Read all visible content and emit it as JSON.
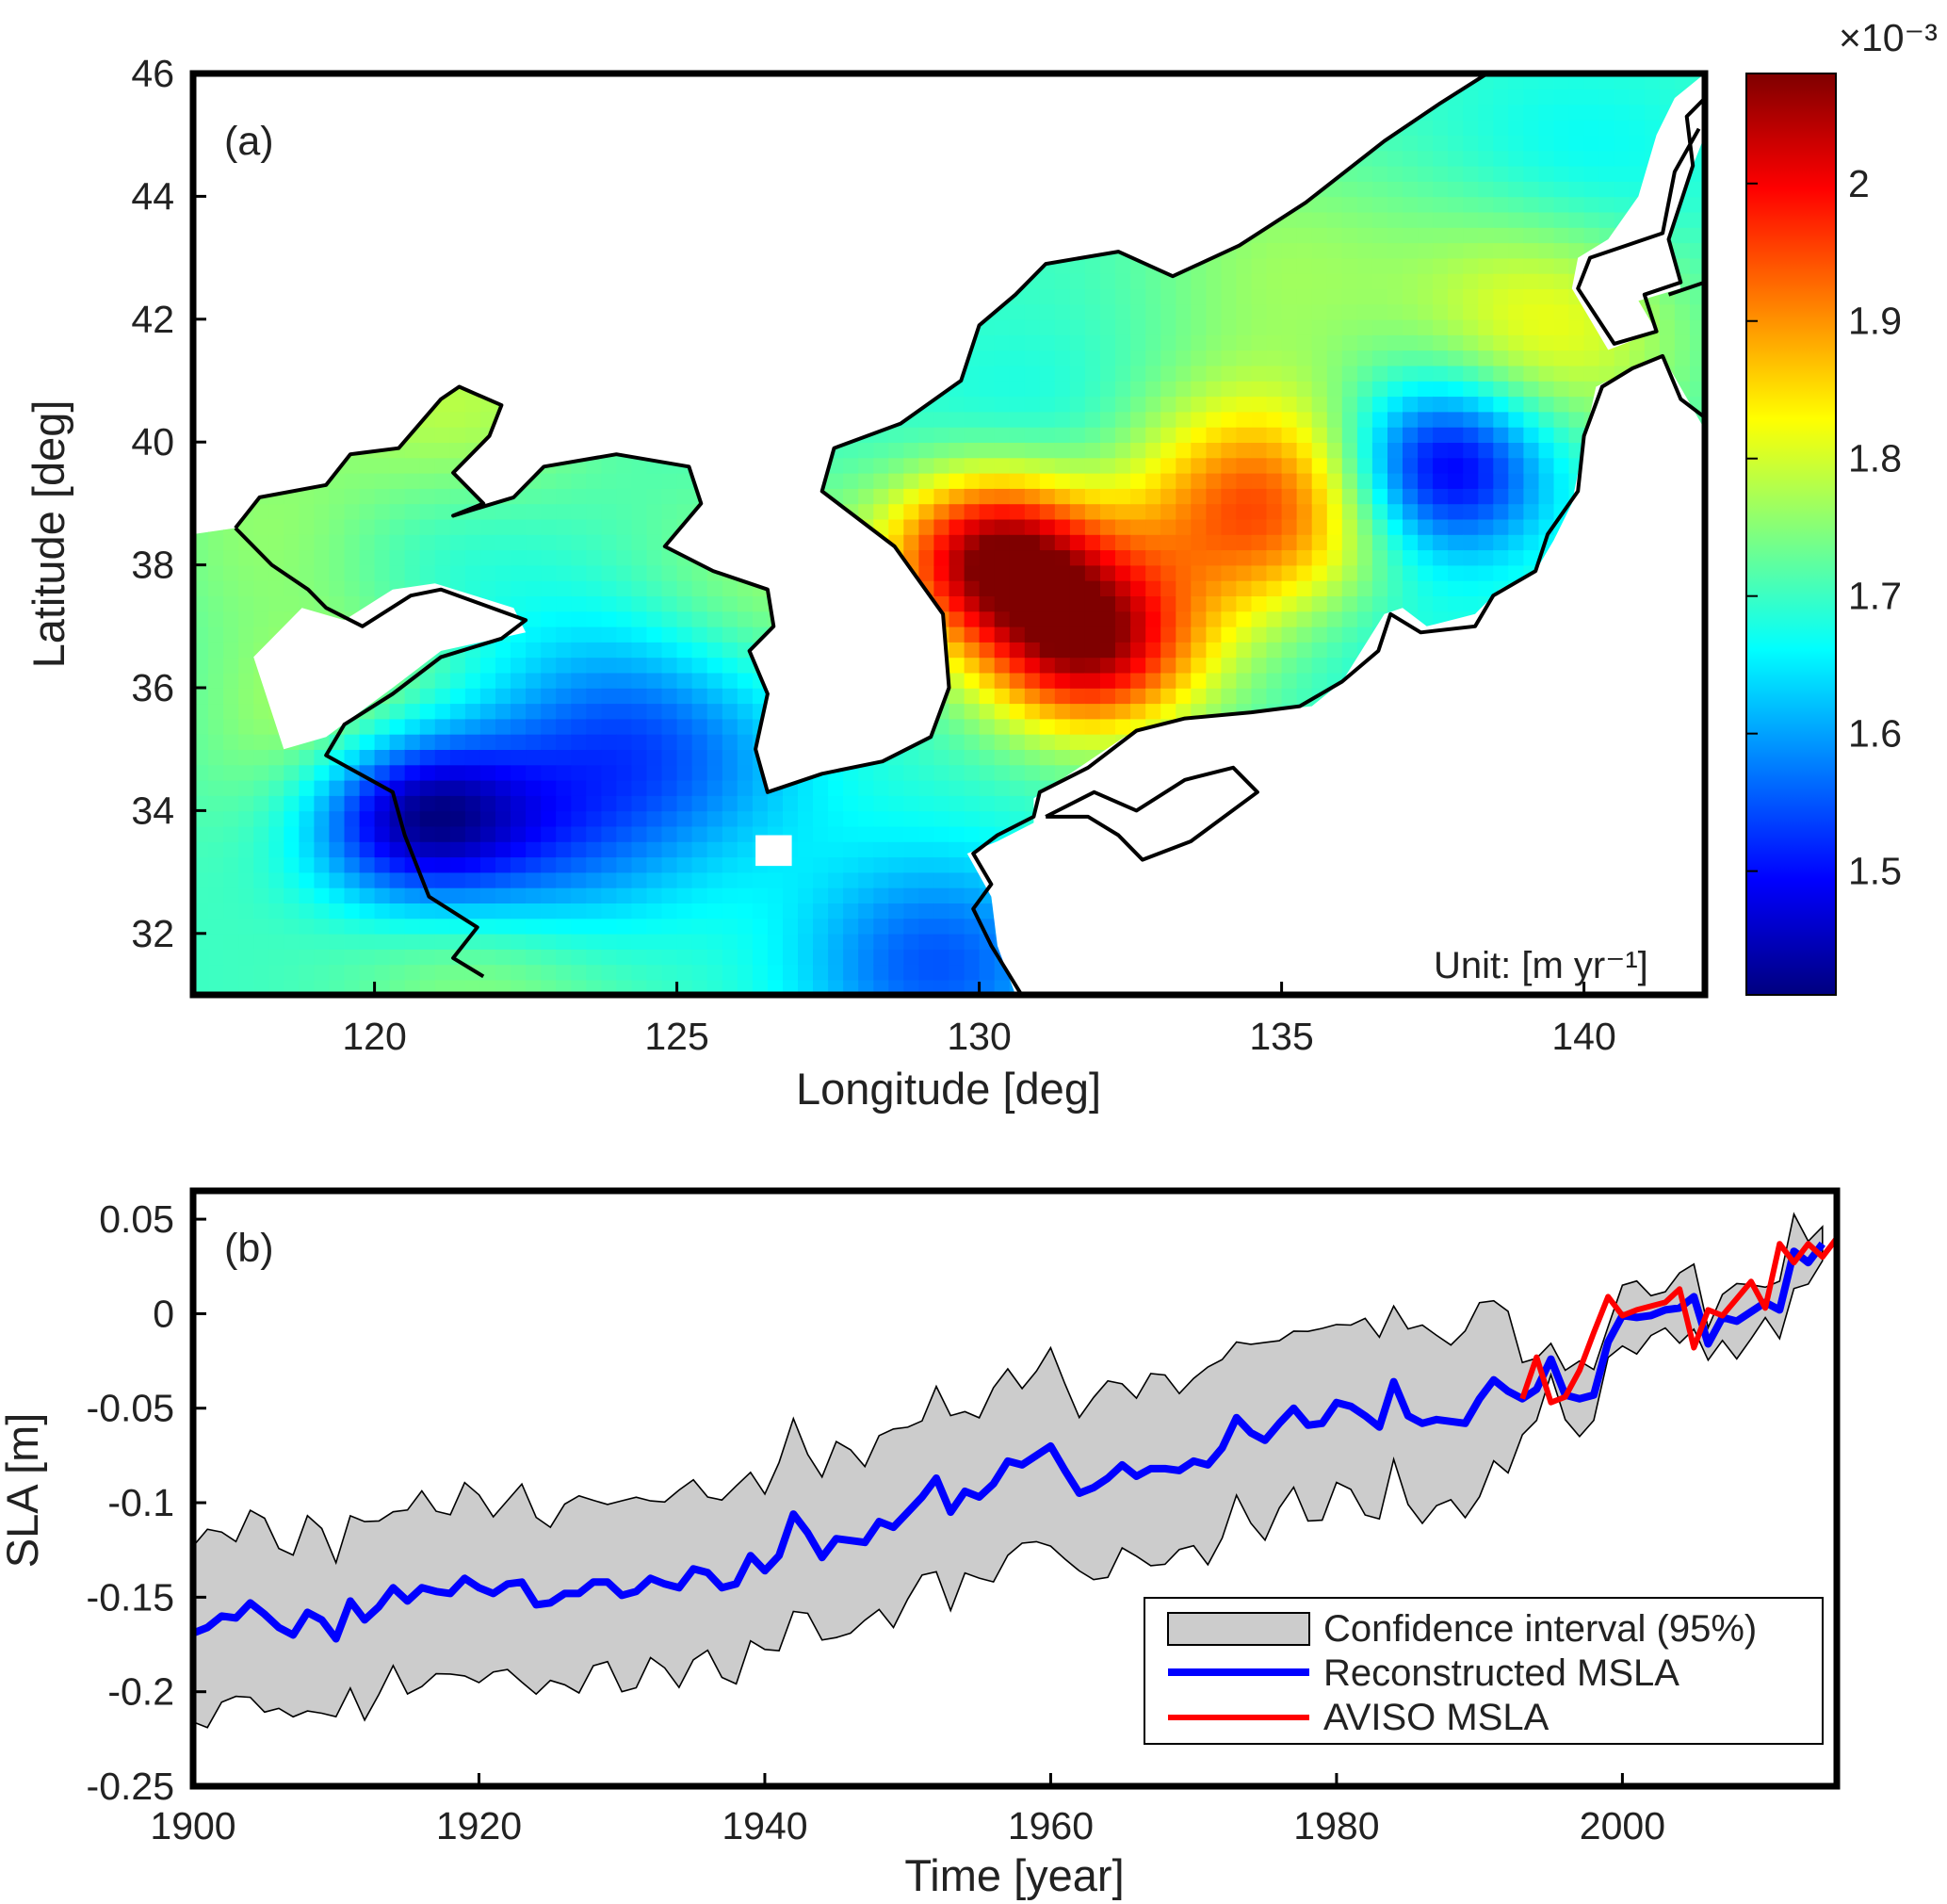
{
  "chart_data": [
    {
      "panel": "(a)",
      "type": "heatmap",
      "xlabel": "Longitude [deg]",
      "ylabel": "Latitude [deg]",
      "xlim": [
        117,
        142
      ],
      "ylim": [
        31,
        46
      ],
      "xticks": [
        120,
        125,
        130,
        135,
        140
      ],
      "yticks": [
        32,
        34,
        36,
        38,
        40,
        42,
        44,
        46
      ],
      "unit_label": "Unit: [m yr⁻¹]",
      "colorbar": {
        "range": [
          1.41,
          2.08
        ],
        "ticks": [
          1.5,
          1.6,
          1.7,
          1.8,
          1.9,
          2
        ],
        "exponent_label": "×10⁻³",
        "colormap": [
          "#00007f",
          "#0000ff",
          "#007fff",
          "#00ffff",
          "#7fff7f",
          "#ffff00",
          "#ff7f00",
          "#ff0000",
          "#7f0000"
        ]
      },
      "background_value": 1.7,
      "features": [
        {
          "name": "Japan Sea north-east minimum",
          "lon": 137.6,
          "lat": 39.6,
          "value": 1.43
        },
        {
          "name": "East of Korea maximum",
          "lon": 130.3,
          "lat": 38.2,
          "value": 2.08
        },
        {
          "name": "Southern Ulleung maximum",
          "lon": 131.8,
          "lat": 36.7,
          "value": 2.03
        },
        {
          "name": "Yamato Rise maximum",
          "lon": 135.3,
          "lat": 38.9,
          "value": 1.88
        },
        {
          "name": "Yamato Rise west",
          "lon": 134.0,
          "lat": 38.9,
          "value": 1.82
        },
        {
          "name": "Off Jiangsu minimum",
          "lon": 120.6,
          "lat": 34.0,
          "value": 1.43
        },
        {
          "name": "Yellow Sea south minimum",
          "lon": 122.5,
          "lat": 33.2,
          "value": 1.53
        },
        {
          "name": "Yellow Sea central",
          "lon": 123.9,
          "lat": 35.5,
          "value": 1.6
        },
        {
          "name": "Korea Strait south",
          "lon": 129.3,
          "lat": 31.5,
          "value": 1.55
        },
        {
          "name": "Northern Japan Sea cyan spot",
          "lon": 139.7,
          "lat": 44.0,
          "value": 1.62
        },
        {
          "name": "Tsushima north cyan",
          "lon": 131.0,
          "lat": 39.5,
          "value": 1.64
        },
        {
          "name": "Bohai Bay west",
          "lon": 118.4,
          "lat": 38.6,
          "value": 1.76
        },
        {
          "name": "Liaodong Bay",
          "lon": 121.3,
          "lat": 40.5,
          "value": 1.79
        },
        {
          "name": "Off Shanghai",
          "lon": 122.0,
          "lat": 32.0,
          "value": 1.81
        },
        {
          "name": "Haizhou north yellow",
          "lon": 119.6,
          "lat": 35.3,
          "value": 1.8
        },
        {
          "name": "Primorye coast",
          "lon": 135.0,
          "lat": 42.9,
          "value": 1.76
        },
        {
          "name": "Off Akita",
          "lon": 139.5,
          "lat": 41.6,
          "value": 1.79
        },
        {
          "name": "Northern yellow",
          "lon": 139.2,
          "lat": 43.1,
          "value": 1.78
        },
        {
          "name": "Korea west coast",
          "lon": 126.3,
          "lat": 37.5,
          "value": 1.76
        },
        {
          "name": "Japan Sea south",
          "lon": 134.0,
          "lat": 36.5,
          "value": 1.72
        },
        {
          "name": "Oki cyan",
          "lon": 136.2,
          "lat": 37.4,
          "value": 1.64
        },
        {
          "name": "Yellow Sea east",
          "lon": 125.5,
          "lat": 34.8,
          "value": 1.63
        },
        {
          "name": "Bohai strait",
          "lon": 120.8,
          "lat": 38.6,
          "value": 1.66
        }
      ]
    },
    {
      "panel": "(b)",
      "type": "line",
      "xlabel": "Time [year]",
      "ylabel": "SLA [m]",
      "xlim": [
        1900,
        2015
      ],
      "ylim": [
        -0.25,
        0.065
      ],
      "xticks": [
        1900,
        1920,
        1940,
        1960,
        1980,
        2000
      ],
      "yticks": [
        0.05,
        0,
        -0.05,
        -0.1,
        -0.15,
        -0.2,
        -0.25
      ],
      "ytick_labels": [
        "0.05",
        "0",
        "-0.05",
        "-0.1",
        "-0.15",
        "-0.2",
        "-0.25"
      ],
      "legend": [
        "Confidence interval (95%)",
        "Reconstructed MSLA",
        "AVISO MSLA"
      ],
      "series": [
        {
          "name": "Reconstructed MSLA",
          "color": "#0000ff",
          "x_start": 1900,
          "values": [
            -0.169,
            -0.166,
            -0.16,
            -0.161,
            -0.153,
            -0.159,
            -0.166,
            -0.17,
            -0.158,
            -0.162,
            -0.172,
            -0.152,
            -0.162,
            -0.155,
            -0.145,
            -0.152,
            -0.145,
            -0.147,
            -0.148,
            -0.14,
            -0.145,
            -0.148,
            -0.143,
            -0.142,
            -0.154,
            -0.153,
            -0.148,
            -0.148,
            -0.142,
            -0.142,
            -0.149,
            -0.147,
            -0.14,
            -0.143,
            -0.145,
            -0.135,
            -0.137,
            -0.145,
            -0.143,
            -0.128,
            -0.136,
            -0.128,
            -0.106,
            -0.116,
            -0.129,
            -0.119,
            -0.12,
            -0.121,
            -0.11,
            -0.113,
            -0.105,
            -0.097,
            -0.087,
            -0.105,
            -0.094,
            -0.097,
            -0.09,
            -0.078,
            -0.08,
            -0.075,
            -0.07,
            -0.083,
            -0.095,
            -0.092,
            -0.087,
            -0.08,
            -0.086,
            -0.082,
            -0.082,
            -0.083,
            -0.078,
            -0.08,
            -0.071,
            -0.055,
            -0.063,
            -0.067,
            -0.058,
            -0.05,
            -0.059,
            -0.058,
            -0.047,
            -0.049,
            -0.054,
            -0.06,
            -0.036,
            -0.054,
            -0.058,
            -0.056,
            -0.057,
            -0.058,
            -0.045,
            -0.035,
            -0.041,
            -0.045,
            -0.04,
            -0.024,
            -0.043,
            -0.045,
            -0.043,
            -0.015,
            -0.001,
            -0.002,
            -0.001,
            0.002,
            0.003,
            0.009,
            -0.016,
            -0.002,
            -0.004,
            0.001,
            0.006,
            0.002,
            0.033,
            0.027,
            0.037
          ]
        },
        {
          "name": "AVISO MSLA",
          "color": "#ff0000",
          "x": [
            1993,
            1994,
            1995,
            1996,
            1997,
            1998,
            1999,
            2000,
            2001,
            2002,
            2003,
            2004,
            2005,
            2006,
            2007,
            2008,
            2009,
            2010,
            2011,
            2012,
            2013,
            2014,
            2015
          ],
          "values": [
            -0.045,
            -0.023,
            -0.047,
            -0.044,
            -0.03,
            -0.01,
            0.009,
            -0.001,
            0.002,
            0.004,
            0.006,
            0.013,
            -0.018,
            0.002,
            -0.001,
            0.008,
            0.017,
            0.003,
            0.037,
            0.027,
            0.037,
            0.03,
            0.04
          ]
        },
        {
          "name": "Confidence interval (95%)",
          "type": "band",
          "fill": "#cccccc",
          "upper_offset": 0.046,
          "lower_offset": 0.047,
          "narrow_from_year": 1993,
          "narrow_offset": 0.014
        }
      ]
    }
  ]
}
